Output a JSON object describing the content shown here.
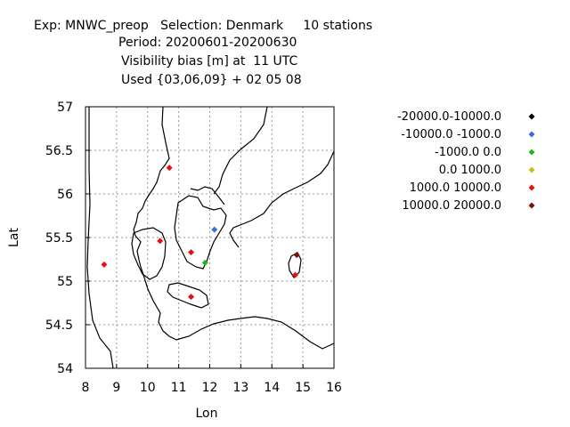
{
  "header": {
    "line1": "Exp: MNWC_preop   Selection: Denmark     10 stations",
    "line2": "Period: 20200601-20200630",
    "line3": "Visibility bias [m] at  11 UTC",
    "line4": "Used {03,06,09} + 02 05 08"
  },
  "chart_data": {
    "type": "scatter",
    "xlabel": "Lon",
    "ylabel": "Lat",
    "xlim": [
      8,
      16
    ],
    "ylim": [
      54,
      57
    ],
    "xticks": [
      "8",
      "9",
      "10",
      "11",
      "12",
      "13",
      "14",
      "15",
      "16"
    ],
    "yticks": [
      "54",
      "54.5",
      "55",
      "55.5",
      "56",
      "56.5",
      "57"
    ],
    "grid": true,
    "legend_position": "right",
    "legend": [
      {
        "label": "-20000.0-10000.0",
        "color": "#000000"
      },
      {
        "label": "-10000.0 -1000.0",
        "color": "#3a6fd8"
      },
      {
        "label": "-1000.0 0.0",
        "color": "#1fb51f"
      },
      {
        "label": "0.0 1000.0",
        "color": "#c8c018"
      },
      {
        "label": "1000.0 10000.0",
        "color": "#e81010"
      },
      {
        "label": "10000.0 20000.0",
        "color": "#7a1010"
      }
    ],
    "points": [
      {
        "lon": 10.7,
        "lat": 56.3,
        "class": 4
      },
      {
        "lon": 12.15,
        "lat": 55.59,
        "class": 1
      },
      {
        "lon": 10.4,
        "lat": 55.46,
        "class": 4
      },
      {
        "lon": 11.4,
        "lat": 55.33,
        "class": 4
      },
      {
        "lon": 11.85,
        "lat": 55.21,
        "class": 2
      },
      {
        "lon": 8.6,
        "lat": 55.19,
        "class": 4
      },
      {
        "lon": 11.4,
        "lat": 54.82,
        "class": 4
      },
      {
        "lon": 14.8,
        "lat": 55.3,
        "class": 5
      },
      {
        "lon": 14.75,
        "lat": 55.07,
        "class": 4
      }
    ]
  }
}
